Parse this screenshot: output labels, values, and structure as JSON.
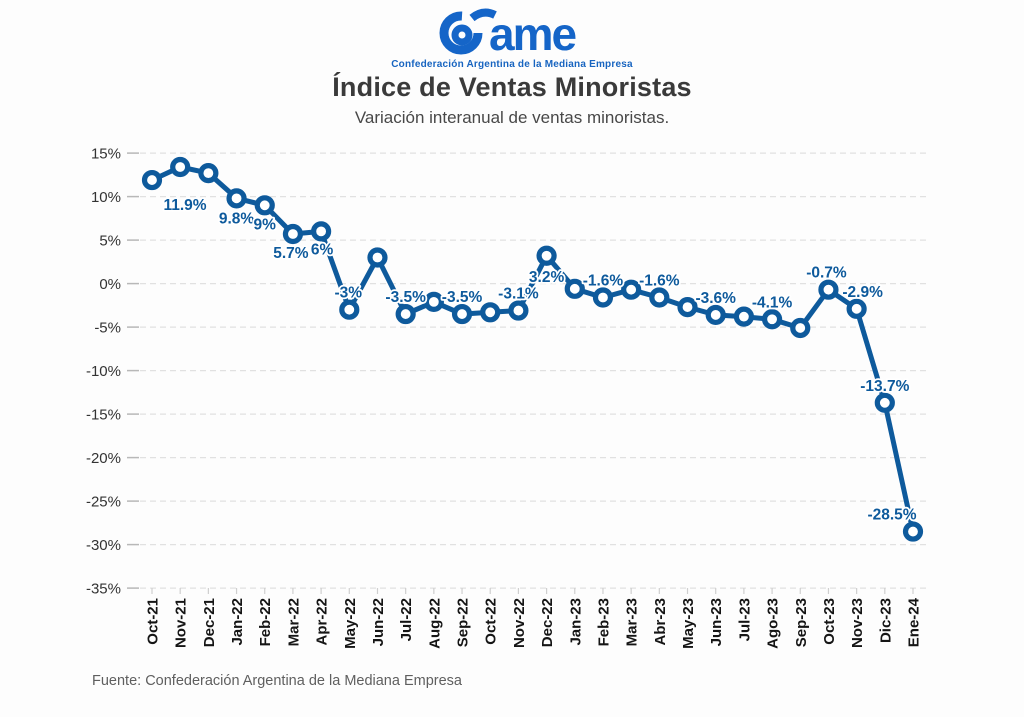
{
  "logo": {
    "wordmark_text": "ame",
    "tagline": "Confederación Argentina de la Mediana Empresa",
    "brand_color": "#1565c8"
  },
  "header": {
    "title": "Índice de Ventas Minoristas",
    "subtitle": "Variación interanual de ventas minoristas."
  },
  "footer": {
    "source": "Fuente: Confederación Argentina de la Mediana Empresa"
  },
  "chart_data": {
    "type": "line",
    "title": "Índice de Ventas Minoristas",
    "subtitle": "Variación interanual de ventas minoristas.",
    "xlabel": "",
    "ylabel": "",
    "ylim": [
      -35,
      15
    ],
    "y_ticks": [
      15,
      10,
      5,
      0,
      -5,
      -10,
      -15,
      -20,
      -25,
      -30,
      -35
    ],
    "y_tick_suffix": "%",
    "grid": "dashed-horizontal",
    "legend": "none",
    "marker": "circle-open",
    "categories": [
      "Oct-21",
      "Nov-21",
      "Dec-21",
      "Jan-22",
      "Feb-22",
      "Mar-22",
      "Apr-22",
      "May-22",
      "Jun-22",
      "Jul-22",
      "Aug-22",
      "Sep-22",
      "Oct-22",
      "Nov-22",
      "Dec-22",
      "Jan-23",
      "Feb-23",
      "Mar-23",
      "Abr-23",
      "May-23",
      "Jun-23",
      "Jul-23",
      "Ago-23",
      "Sep-23",
      "Oct-23",
      "Nov-23",
      "Dic-23",
      "Ene-24"
    ],
    "values": [
      11.9,
      13.4,
      12.7,
      9.8,
      9,
      5.7,
      6,
      -3,
      3,
      -3.5,
      -2.1,
      -3.5,
      -3.3,
      -3.1,
      3.2,
      -0.6,
      -1.6,
      -0.7,
      -1.6,
      -2.7,
      -3.6,
      -3.8,
      -4.1,
      -5.1,
      -0.7,
      -2.9,
      -13.7,
      -28.5
    ],
    "point_labels": [
      "11.9%",
      null,
      null,
      "9.8%",
      "9%",
      "5.7%",
      "6%",
      "-3%",
      null,
      "-3.5%",
      null,
      "-3.5%",
      null,
      "-3.1%",
      "3.2%",
      null,
      "-1.6%",
      null,
      "-1.6%",
      null,
      "-3.6%",
      null,
      "-4.1%",
      null,
      "-0.7%",
      "-2.9%",
      "-13.7%",
      "-28.5%"
    ],
    "colors": {
      "line": "#0e5a9c",
      "marker_fill": "#ffffff",
      "point_label": "#0e5a9c",
      "grid": "#e1e1e1",
      "tick": "#b8b8b8",
      "y_tick_text": "#333333",
      "x_tick_text": "#151515"
    }
  }
}
